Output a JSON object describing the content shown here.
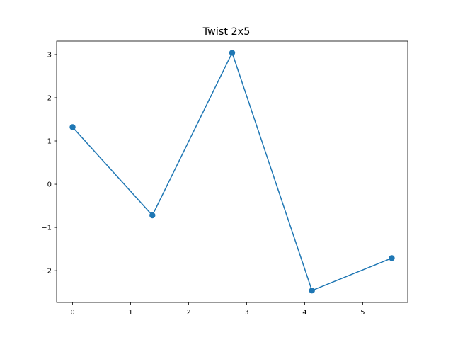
{
  "chart_data": {
    "type": "line",
    "title": "Twist 2x5",
    "xlabel": "",
    "ylabel": "",
    "xlim": [
      -0.275,
      5.775
    ],
    "ylim": [
      -2.735,
      3.31
    ],
    "x_ticks": [
      0,
      1,
      2,
      3,
      4,
      5
    ],
    "y_ticks": [
      -2,
      -1,
      0,
      1,
      2,
      3
    ],
    "x_tick_labels": [
      "0",
      "1",
      "2",
      "3",
      "4",
      "5"
    ],
    "y_tick_labels": [
      "−2",
      "−1",
      "0",
      "1",
      "2",
      "3"
    ],
    "grid": false,
    "series": [
      {
        "color": "#1f77b4",
        "marker": "circle",
        "x": [
          0,
          1.375,
          2.75,
          4.125,
          5.5
        ],
        "y": [
          1.32,
          -0.72,
          3.04,
          -2.46,
          -1.71
        ]
      }
    ]
  }
}
